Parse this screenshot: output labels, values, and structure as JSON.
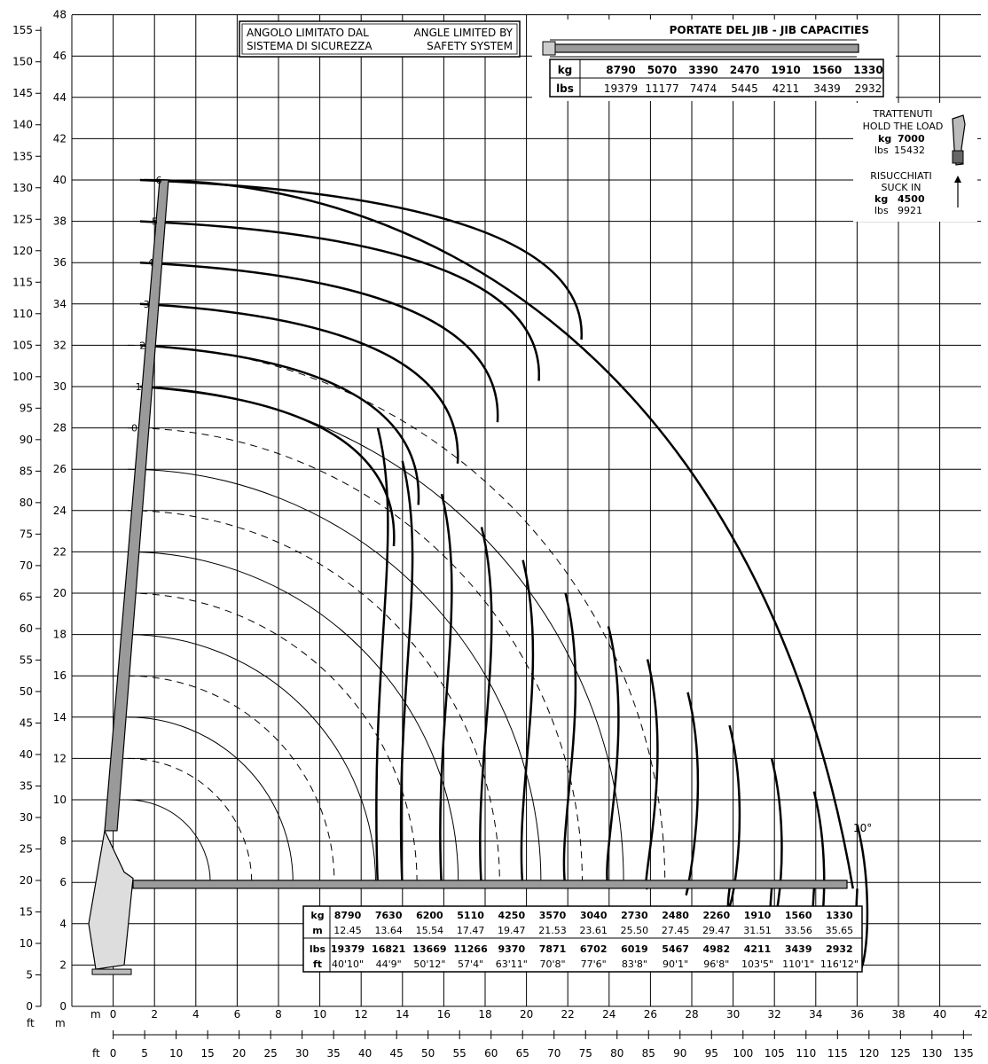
{
  "axes": {
    "left_ft": {
      "unit": "ft",
      "ticks": [
        "0",
        "5",
        "10",
        "15",
        "20",
        "25",
        "30",
        "35",
        "40",
        "45",
        "50",
        "55",
        "60",
        "65",
        "70",
        "75",
        "80",
        "85",
        "90",
        "95",
        "100",
        "105",
        "110",
        "115",
        "120",
        "125",
        "130",
        "135",
        "140",
        "145",
        "150",
        "155"
      ]
    },
    "left_m": {
      "unit": "m",
      "ticks": [
        "0",
        "2",
        "4",
        "6",
        "8",
        "10",
        "12",
        "14",
        "16",
        "18",
        "20",
        "22",
        "24",
        "26",
        "28",
        "30",
        "32",
        "34",
        "36",
        "38",
        "40",
        "42",
        "44",
        "46",
        "48"
      ]
    },
    "bottom_m": {
      "unit": "m",
      "ticks": [
        "0",
        "2",
        "4",
        "6",
        "8",
        "10",
        "12",
        "14",
        "16",
        "18",
        "20",
        "22",
        "24",
        "26",
        "28",
        "30",
        "32",
        "34",
        "36",
        "38",
        "40",
        "42"
      ]
    },
    "bottom_ft": {
      "unit": "ft",
      "ticks": [
        "0",
        "5",
        "10",
        "15",
        "20",
        "25",
        "30",
        "35",
        "40",
        "45",
        "50",
        "55",
        "60",
        "65",
        "70",
        "75",
        "80",
        "85",
        "90",
        "95",
        "100",
        "105",
        "110",
        "115",
        "120",
        "125",
        "130",
        "135"
      ]
    }
  },
  "angle_note": {
    "it_line1": "ANGOLO LIMITATO DAL",
    "it_line2": "SISTEMA DI SICUREZZA",
    "en_line1": "ANGLE LIMITED BY",
    "en_line2": "SAFETY SYSTEM"
  },
  "jib": {
    "title": "PORTATE DEL JIB  -  JIB CAPACITIES",
    "kg_label": "kg",
    "lbs_label": "lbs",
    "kg": [
      "8790",
      "5070",
      "3390",
      "2470",
      "1910",
      "1560",
      "1330"
    ],
    "lbs": [
      "19379",
      "11177",
      "7474",
      "5445",
      "4211",
      "3439",
      "2932"
    ]
  },
  "winch": {
    "hold_line1": "TRATTENUTI",
    "hold_line2": "HOLD THE LOAD",
    "hold_kg_label": "kg",
    "hold_kg": "7000",
    "hold_lbs_label": "lbs",
    "hold_lbs": "15432",
    "suck_line1": "RISUCCHIATI",
    "suck_line2": "SUCK IN",
    "suck_kg_label": "kg",
    "suck_kg": "4500",
    "suck_lbs_label": "lbs",
    "suck_lbs": "9921"
  },
  "extensions": [
    "0",
    "1",
    "2",
    "3",
    "4",
    "5",
    "6"
  ],
  "angle_label": "10°",
  "capacity_table": {
    "labels": {
      "kg": "kg",
      "m": "m",
      "lbs": "lbs",
      "ft": "ft"
    },
    "kg": [
      "8790",
      "7630",
      "6200",
      "5110",
      "4250",
      "3570",
      "3040",
      "2730",
      "2480",
      "2260",
      "1910",
      "1560",
      "1330"
    ],
    "m": [
      "12.45",
      "13.64",
      "15.54",
      "17.47",
      "19.47",
      "21.53",
      "23.61",
      "25.50",
      "27.45",
      "29.47",
      "31.51",
      "33.56",
      "35.65"
    ],
    "lbs": [
      "19379",
      "16821",
      "13669",
      "11266",
      "9370",
      "7871",
      "6702",
      "6019",
      "5467",
      "4982",
      "4211",
      "3439",
      "2932"
    ],
    "ft": [
      "40'10\"",
      "44'9\"",
      "50'12\"",
      "57'4\"",
      "63'11\"",
      "70'8\"",
      "77'6\"",
      "83'8\"",
      "90'1\"",
      "96'8\"",
      "103'5\"",
      "110'1\"",
      "116'12\""
    ]
  },
  "colors": {
    "boom": "#9a9a9a",
    "grid": "#000000",
    "curve": "#000000"
  }
}
